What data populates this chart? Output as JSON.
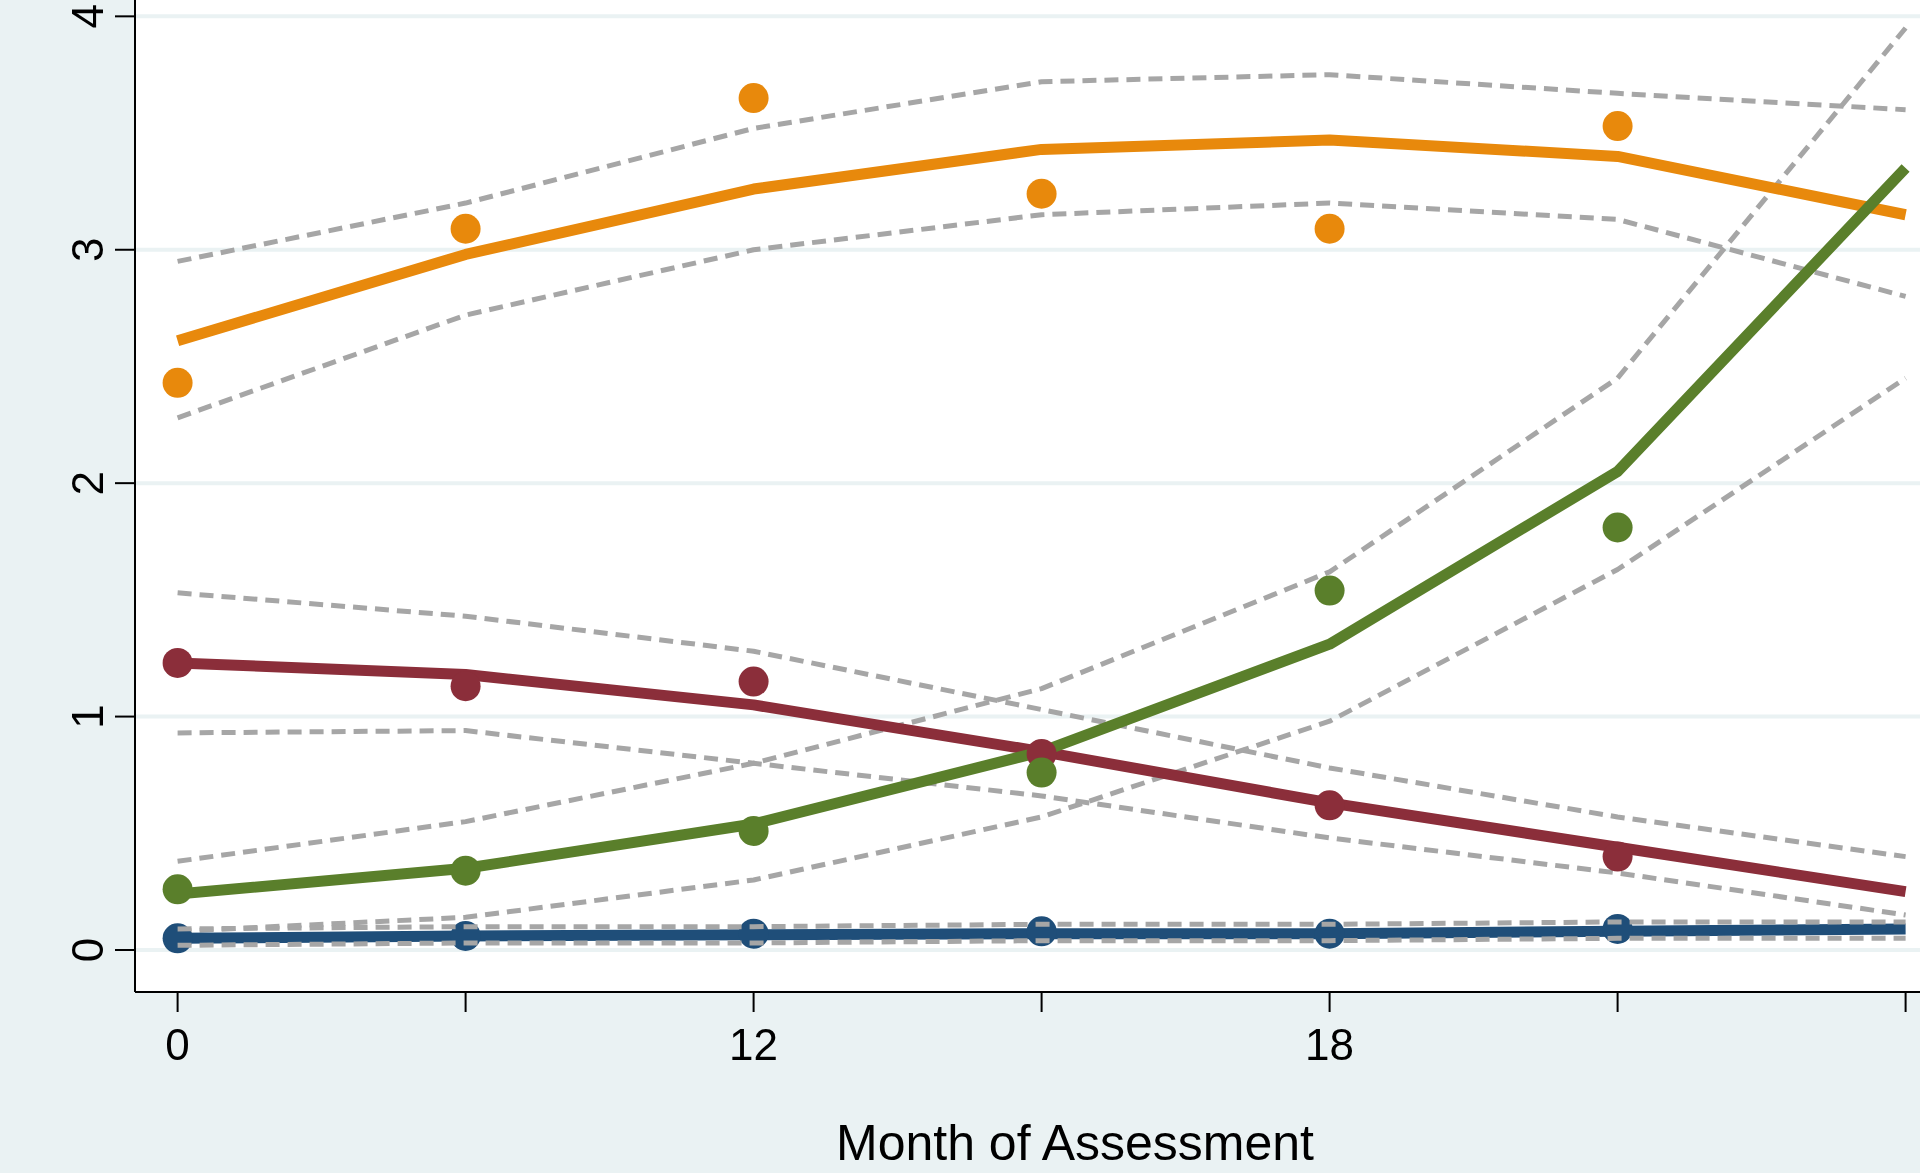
{
  "chart_data": {
    "type": "line",
    "xlabel": "Month of Assessment",
    "categories": [
      "0",
      null,
      "12",
      null,
      "18",
      null,
      null
    ],
    "ylim": [
      -0.18,
      4.07
    ],
    "yticks": [
      0,
      1,
      2,
      3,
      4
    ],
    "grid": "y",
    "line_style": "solid",
    "marker": "none",
    "series": [
      {
        "color": "#a6a6a6",
        "line_style": "dashed",
        "values": [
          2.95,
          3.2,
          3.52,
          3.72,
          3.75,
          3.67,
          3.6
        ]
      },
      {
        "color": "#a6a6a6",
        "line_style": "dashed",
        "values": [
          2.28,
          2.72,
          3.0,
          3.15,
          3.2,
          3.13,
          2.8
        ]
      },
      {
        "color": "#a6a6a6",
        "line_style": "dashed",
        "values": [
          1.53,
          1.43,
          1.28,
          1.03,
          0.78,
          0.57,
          0.4
        ]
      },
      {
        "color": "#a6a6a6",
        "line_style": "dashed",
        "values": [
          0.93,
          0.94,
          0.8,
          0.66,
          0.48,
          0.33,
          0.15
        ]
      },
      {
        "color": "#a6a6a6",
        "line_style": "dashed",
        "values": [
          0.38,
          0.55,
          0.8,
          1.12,
          1.62,
          2.45,
          3.95
        ]
      },
      {
        "color": "#a6a6a6",
        "line_style": "dashed",
        "values": [
          0.08,
          0.14,
          0.3,
          0.57,
          0.98,
          1.63,
          2.45
        ]
      },
      {
        "color": "#e8890c",
        "values": [
          2.61,
          2.98,
          3.26,
          3.43,
          3.47,
          3.4,
          3.15
        ]
      },
      {
        "color": "#8b2e3a",
        "values": [
          1.23,
          1.18,
          1.05,
          0.85,
          0.63,
          0.44,
          0.25
        ]
      },
      {
        "color": "#5a7f2b",
        "values": [
          0.24,
          0.35,
          0.54,
          0.85,
          1.31,
          2.05,
          3.35
        ]
      },
      {
        "color": "#1f4e79",
        "values": [
          0.05,
          0.06,
          0.065,
          0.07,
          0.07,
          0.08,
          0.09
        ]
      },
      {
        "type": "scatter",
        "color": "#e8890c",
        "marker": "circle",
        "values": [
          2.43,
          3.09,
          3.65,
          3.24,
          3.09,
          3.53,
          null
        ]
      },
      {
        "type": "scatter",
        "color": "#8b2e3a",
        "marker": "circle",
        "values": [
          1.23,
          1.13,
          1.15,
          0.84,
          0.62,
          0.4,
          null
        ]
      },
      {
        "type": "scatter",
        "color": "#5a7f2b",
        "marker": "circle",
        "values": [
          0.26,
          0.34,
          0.51,
          0.76,
          1.54,
          1.81,
          null
        ]
      },
      {
        "type": "scatter",
        "color": "#1f4e79",
        "marker": "circle",
        "values": [
          0.05,
          0.06,
          0.07,
          0.08,
          0.07,
          0.09,
          null
        ]
      },
      {
        "color": "#a6a6a6",
        "line_style": "dashed",
        "values": [
          0.09,
          0.1,
          0.1,
          0.11,
          0.11,
          0.12,
          0.12
        ]
      },
      {
        "color": "#a6a6a6",
        "line_style": "dashed",
        "values": [
          0.02,
          0.03,
          0.03,
          0.04,
          0.04,
          0.05,
          0.05
        ]
      }
    ]
  }
}
